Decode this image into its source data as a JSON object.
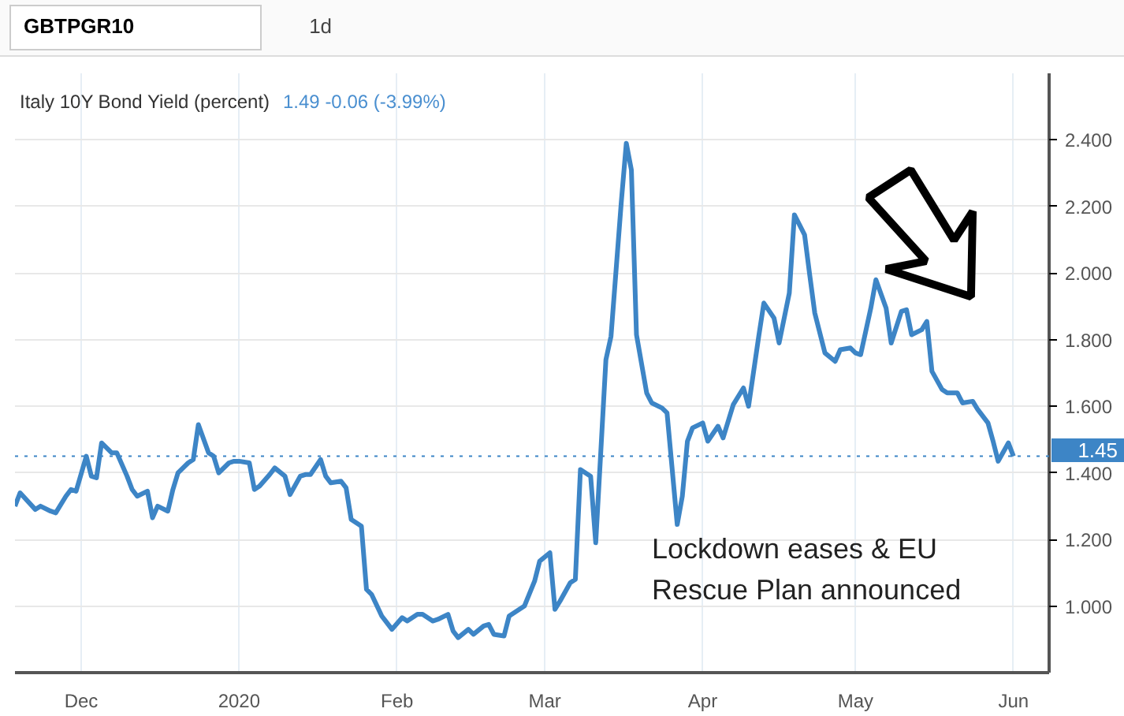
{
  "chart_data": {
    "type": "line",
    "title": "Italy 10Y Bond Yield (percent)",
    "subtitle": "1.49  -0.06 (-3.99%)",
    "annotations": [
      "GBTPGR10",
      "1d",
      "Lockdown eases & EU\nRescue Plan announced"
    ],
    "x": [
      "2019-11-18",
      "2019-11-19",
      "2019-11-22",
      "2019-11-23",
      "2019-11-25",
      "2019-11-26",
      "2019-11-28",
      "2019-11-29",
      "2019-11-30",
      "2019-12-02",
      "2019-12-03",
      "2019-12-04",
      "2019-12-05",
      "2019-12-07",
      "2019-12-08",
      "2019-12-10",
      "2019-12-11",
      "2019-12-12",
      "2019-12-14",
      "2019-12-15",
      "2019-12-16",
      "2019-12-18",
      "2019-12-19",
      "2019-12-20",
      "2019-12-22",
      "2019-12-23",
      "2019-12-24",
      "2019-12-26",
      "2019-12-27",
      "2019-12-28",
      "2019-12-30",
      "2019-12-31",
      "2020-01-01",
      "2020-01-03",
      "2020-01-04",
      "2020-01-05",
      "2020-01-07",
      "2020-01-08",
      "2020-01-10",
      "2020-01-11",
      "2020-01-13",
      "2020-01-14",
      "2020-01-15",
      "2020-01-17",
      "2020-01-18",
      "2020-01-19",
      "2020-01-21",
      "2020-01-22",
      "2020-01-23",
      "2020-01-25",
      "2020-01-26",
      "2020-01-27",
      "2020-01-29",
      "2020-01-30",
      "2020-01-31",
      "2020-02-02",
      "2020-02-03",
      "2020-02-05",
      "2020-02-06",
      "2020-02-08",
      "2020-02-09",
      "2020-02-11",
      "2020-02-12",
      "2020-02-13",
      "2020-02-15",
      "2020-02-16",
      "2020-02-18",
      "2020-02-19",
      "2020-02-20",
      "2020-02-22",
      "2020-02-23",
      "2020-02-25",
      "2020-02-26",
      "2020-02-28",
      "2020-02-29",
      "2020-03-02",
      "2020-03-03",
      "2020-03-04",
      "2020-03-06",
      "2020-03-07",
      "2020-03-08",
      "2020-03-10",
      "2020-03-11",
      "2020-03-13",
      "2020-03-14",
      "2020-03-16",
      "2020-03-17",
      "2020-03-18",
      "2020-03-19",
      "2020-03-21",
      "2020-03-22",
      "2020-03-24",
      "2020-03-25",
      "2020-03-27",
      "2020-03-28",
      "2020-03-29",
      "2020-03-30",
      "2020-04-01",
      "2020-04-02",
      "2020-04-04",
      "2020-04-05",
      "2020-04-07",
      "2020-04-09",
      "2020-04-10",
      "2020-04-12",
      "2020-04-13",
      "2020-04-15",
      "2020-04-16",
      "2020-04-18",
      "2020-04-19",
      "2020-04-21",
      "2020-04-22",
      "2020-04-23",
      "2020-04-25",
      "2020-04-27",
      "2020-04-28",
      "2020-04-30",
      "2020-05-01",
      "2020-05-02",
      "2020-05-04",
      "2020-05-05",
      "2020-05-07",
      "2020-05-08",
      "2020-05-10",
      "2020-05-11",
      "2020-05-12",
      "2020-05-14",
      "2020-05-15",
      "2020-05-16",
      "2020-05-18",
      "2020-05-19",
      "2020-05-21",
      "2020-05-22",
      "2020-05-24",
      "2020-05-25",
      "2020-05-27",
      "2020-05-28",
      "2020-05-29",
      "2020-05-31",
      "2020-06-01"
    ],
    "series": [
      {
        "color": "#3d85c6",
        "values": [
          1.3,
          1.34,
          1.29,
          1.3,
          1.285,
          1.28,
          1.33,
          1.35,
          1.345,
          1.45,
          1.39,
          1.385,
          1.49,
          1.46,
          1.46,
          1.39,
          1.35,
          1.33,
          1.345,
          1.265,
          1.3,
          1.285,
          1.35,
          1.4,
          1.43,
          1.44,
          1.545,
          1.46,
          1.45,
          1.4,
          1.43,
          1.435,
          1.435,
          1.43,
          1.35,
          1.36,
          1.395,
          1.415,
          1.39,
          1.335,
          1.39,
          1.395,
          1.395,
          1.44,
          1.39,
          1.37,
          1.375,
          1.355,
          1.26,
          1.24,
          1.05,
          1.035,
          0.97,
          0.95,
          0.93,
          0.965,
          0.955,
          0.975,
          0.975,
          0.955,
          0.96,
          0.975,
          0.925,
          0.905,
          0.93,
          0.915,
          0.94,
          0.945,
          0.915,
          0.91,
          0.97,
          0.99,
          1.0,
          1.075,
          1.135,
          1.16,
          0.99,
          1.015,
          1.07,
          1.08,
          1.41,
          1.39,
          1.19,
          1.74,
          1.81,
          2.21,
          2.39,
          2.31,
          1.815,
          1.64,
          1.61,
          1.595,
          1.58,
          1.245,
          1.33,
          1.495,
          1.535,
          1.55,
          1.495,
          1.54,
          1.505,
          1.605,
          1.655,
          1.6,
          1.81,
          1.91,
          1.865,
          1.79,
          1.94,
          2.175,
          2.115,
          1.995,
          1.88,
          1.76,
          1.735,
          1.77,
          1.775,
          1.76,
          1.755,
          1.895,
          1.98,
          1.895,
          1.79,
          1.885,
          1.89,
          1.815,
          1.83,
          1.855,
          1.705,
          1.65,
          1.64,
          1.64,
          1.61,
          1.615,
          1.59,
          1.55,
          1.495,
          1.435,
          1.49,
          1.45
        ]
      }
    ],
    "xlim": [
      "2019-11-18",
      "2020-06-08"
    ],
    "xticks": [
      {
        "value": "2019-12-01",
        "label": "Dec"
      },
      {
        "value": "2020-01-01",
        "label": "2020"
      },
      {
        "value": "2020-02-01",
        "label": "Feb"
      },
      {
        "value": "2020-03-01",
        "label": "Mar"
      },
      {
        "value": "2020-04-01",
        "label": "Apr"
      },
      {
        "value": "2020-05-01",
        "label": "May"
      },
      {
        "value": "2020-06-01",
        "label": "Jun"
      }
    ],
    "ylim": [
      0.8,
      2.6
    ],
    "yticks": [
      {
        "value": 1.0,
        "label": "1.000"
      },
      {
        "value": 1.2,
        "label": "1.200"
      },
      {
        "value": 1.4,
        "label": "1.400"
      },
      {
        "value": 1.6,
        "label": "1.600"
      },
      {
        "value": 1.8,
        "label": "1.800"
      },
      {
        "value": 2.0,
        "label": "2.000"
      },
      {
        "value": 2.2,
        "label": "2.200"
      },
      {
        "value": 2.4,
        "label": "2.400"
      }
    ],
    "ref_lines": [
      {
        "axis": "y",
        "value": 1.45,
        "label": "1.45",
        "color": "#3d85c6",
        "line_style": "dotted"
      }
    ],
    "grid": true,
    "marker": "none",
    "line_style": "solid"
  }
}
